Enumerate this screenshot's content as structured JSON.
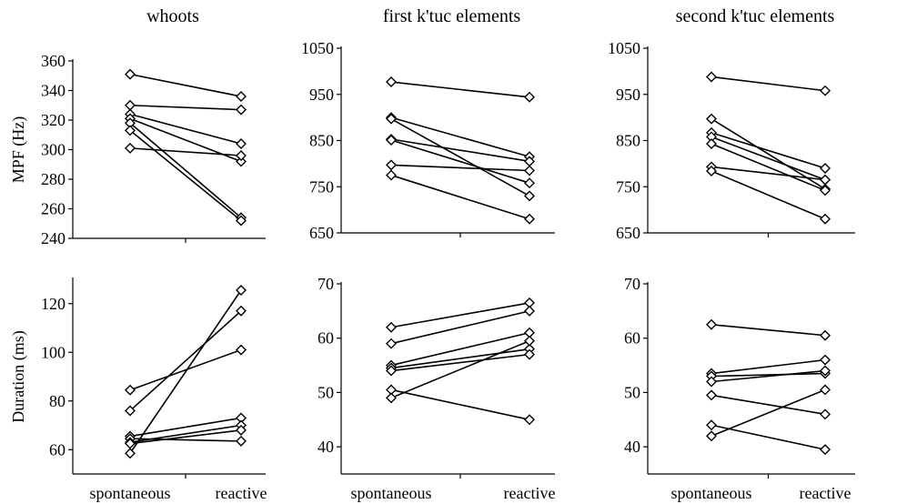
{
  "x_categories": [
    "spontaneous",
    "reactive"
  ],
  "chart_data": [
    {
      "type": "line",
      "title": "whoots",
      "ylabel": "MPF (Hz)",
      "ylim": [
        240,
        360
      ],
      "yticks": [
        240,
        260,
        280,
        300,
        320,
        340,
        360
      ],
      "x": [
        "spontaneous",
        "reactive"
      ],
      "series": [
        {
          "values": [
            351,
            336
          ]
        },
        {
          "values": [
            330,
            327
          ]
        },
        {
          "values": [
            324,
            304
          ]
        },
        {
          "values": [
            321,
            292
          ]
        },
        {
          "values": [
            318,
            254
          ]
        },
        {
          "values": [
            313,
            252
          ]
        },
        {
          "values": [
            301,
            296
          ]
        }
      ]
    },
    {
      "type": "line",
      "title": "first k'tuc elements",
      "ylabel": "",
      "ylim": [
        650,
        1050
      ],
      "yticks": [
        650,
        750,
        850,
        950,
        1050
      ],
      "x": [
        "spontaneous",
        "reactive"
      ],
      "series": [
        {
          "values": [
            977,
            944
          ]
        },
        {
          "values": [
            900,
            815
          ]
        },
        {
          "values": [
            897,
            730
          ]
        },
        {
          "values": [
            853,
            805
          ]
        },
        {
          "values": [
            851,
            758
          ]
        },
        {
          "values": [
            797,
            785
          ]
        },
        {
          "values": [
            775,
            680
          ]
        }
      ]
    },
    {
      "type": "line",
      "title": "second k'tuc elements",
      "ylabel": "",
      "ylim": [
        650,
        1050
      ],
      "yticks": [
        650,
        750,
        850,
        950,
        1050
      ],
      "x": [
        "spontaneous",
        "reactive"
      ],
      "series": [
        {
          "values": [
            988,
            958
          ]
        },
        {
          "values": [
            897,
            745
          ]
        },
        {
          "values": [
            867,
            790
          ]
        },
        {
          "values": [
            858,
            765
          ]
        },
        {
          "values": [
            843,
            742
          ]
        },
        {
          "values": [
            793,
            765
          ]
        },
        {
          "values": [
            784,
            680
          ]
        }
      ]
    },
    {
      "type": "line",
      "title": "",
      "ylabel": "Duration (ms)",
      "ylim": [
        50,
        130
      ],
      "yticks": [
        60,
        80,
        100,
        120
      ],
      "x": [
        "spontaneous",
        "reactive"
      ],
      "series": [
        {
          "values": [
            84.5,
            101
          ]
        },
        {
          "values": [
            76,
            117
          ]
        },
        {
          "values": [
            65.5,
            73
          ]
        },
        {
          "values": [
            64.5,
            63.5
          ]
        },
        {
          "values": [
            63,
            70
          ]
        },
        {
          "values": [
            62.5,
            68
          ]
        },
        {
          "values": [
            58.5,
            125.5
          ]
        }
      ]
    },
    {
      "type": "line",
      "title": "",
      "ylabel": "",
      "ylim": [
        35,
        70
      ],
      "yticks": [
        40,
        50,
        60,
        70
      ],
      "x": [
        "spontaneous",
        "reactive"
      ],
      "series": [
        {
          "values": [
            62,
            66.5
          ]
        },
        {
          "values": [
            59,
            65
          ]
        },
        {
          "values": [
            55,
            61
          ]
        },
        {
          "values": [
            54.5,
            58
          ]
        },
        {
          "values": [
            54,
            57
          ]
        },
        {
          "values": [
            50.5,
            45
          ]
        },
        {
          "values": [
            49,
            59.5
          ]
        }
      ]
    },
    {
      "type": "line",
      "title": "",
      "ylabel": "",
      "ylim": [
        35,
        70
      ],
      "yticks": [
        40,
        50,
        60,
        70
      ],
      "x": [
        "spontaneous",
        "reactive"
      ],
      "series": [
        {
          "values": [
            62.5,
            60.5
          ]
        },
        {
          "values": [
            53.5,
            56
          ]
        },
        {
          "values": [
            53,
            53.5
          ]
        },
        {
          "values": [
            52,
            54
          ]
        },
        {
          "values": [
            49.5,
            46
          ]
        },
        {
          "values": [
            44,
            39.5
          ]
        },
        {
          "values": [
            42,
            50.5
          ]
        }
      ]
    }
  ]
}
